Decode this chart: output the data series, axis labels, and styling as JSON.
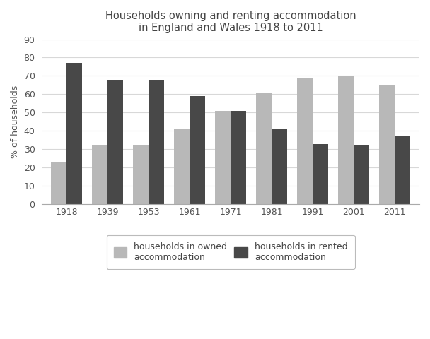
{
  "title": "Households owning and renting accommodation\nin England and Wales 1918 to 2011",
  "ylabel": "% of households",
  "years": [
    "1918",
    "1939",
    "1953",
    "1961",
    "1971",
    "1981",
    "1991",
    "2001",
    "2011"
  ],
  "owned": [
    23,
    32,
    32,
    41,
    51,
    61,
    69,
    70,
    65
  ],
  "rented": [
    77,
    68,
    68,
    59,
    51,
    41,
    33,
    32,
    37
  ],
  "owned_color": "#b8b8b8",
  "rented_color": "#484848",
  "ylim": [
    0,
    90
  ],
  "yticks": [
    0,
    10,
    20,
    30,
    40,
    50,
    60,
    70,
    80,
    90
  ],
  "bar_width": 0.38,
  "legend_owned": "households in owned\naccommodation",
  "legend_rented": "households in rented\naccommodation",
  "background_color": "#ffffff",
  "fig_background_color": "#ffffff",
  "grid_color": "#d8d8d8",
  "title_fontsize": 10.5,
  "axis_fontsize": 9,
  "tick_fontsize": 9
}
